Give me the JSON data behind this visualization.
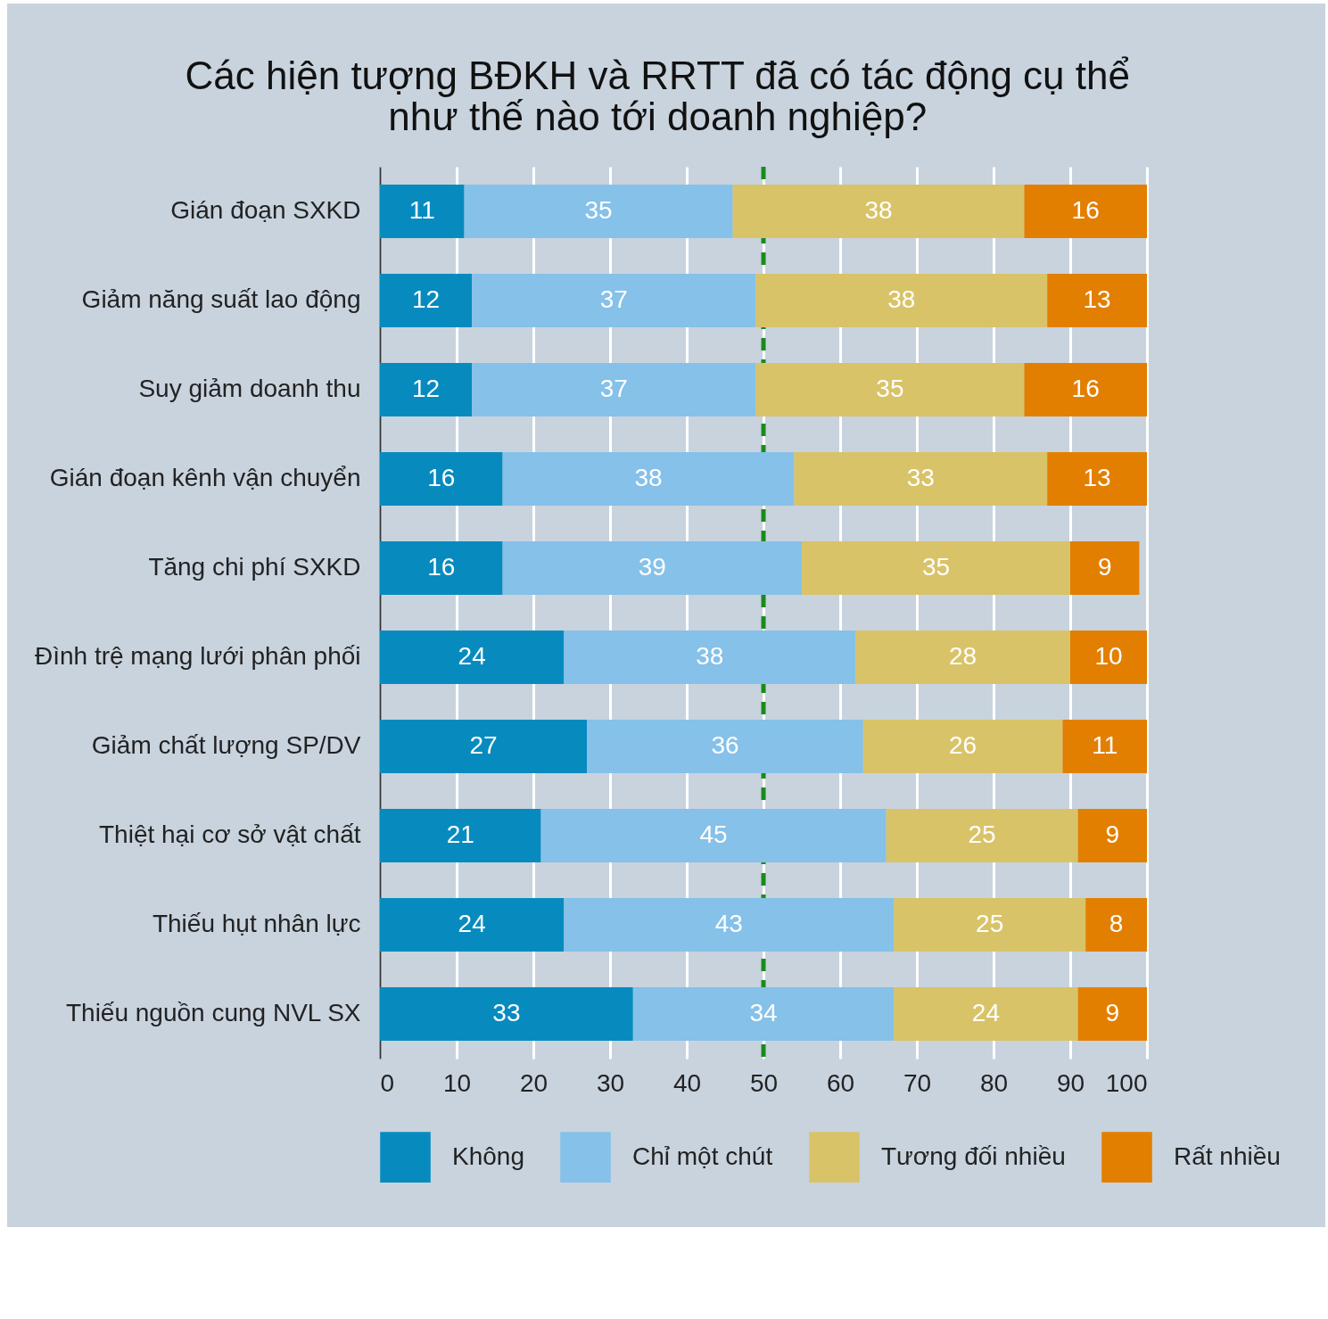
{
  "chart_data": {
    "type": "bar",
    "orientation": "horizontal",
    "stacked": true,
    "title": "Các hiện tượng BĐKH và RRTT đã có tác động cụ thể\nnhư thế nào tới doanh nghiệp?",
    "categories": [
      "Gián đoạn SXKD",
      "Giảm năng suất lao động",
      "Suy giảm doanh thu",
      "Gián đoạn kênh vận chuyển",
      "Tăng chi phí SXKD",
      "Đình trệ mạng lưới phân phối",
      "Giảm chất lượng SP/DV",
      "Thiệt hại cơ sở vật chất",
      "Thiếu hụt nhân lực",
      "Thiếu nguồn cung NVL SX"
    ],
    "series": [
      {
        "name": "Không",
        "color": "#078bbf",
        "values": [
          11,
          12,
          12,
          16,
          16,
          24,
          27,
          21,
          24,
          33
        ]
      },
      {
        "name": "Chỉ một chút",
        "color": "#85c1e9",
        "values": [
          35,
          37,
          37,
          38,
          39,
          38,
          36,
          45,
          43,
          34
        ]
      },
      {
        "name": "Tương đối nhiều",
        "color": "#d9c368",
        "values": [
          38,
          38,
          35,
          33,
          35,
          28,
          26,
          25,
          25,
          24
        ]
      },
      {
        "name": "Rất nhiều",
        "color": "#e37f00",
        "values": [
          16,
          13,
          16,
          13,
          9,
          10,
          11,
          9,
          8,
          9
        ]
      }
    ],
    "xlim": [
      0,
      100
    ],
    "xticks": [
      0,
      10,
      20,
      30,
      40,
      50,
      60,
      70,
      80,
      90,
      100
    ],
    "ref_lines": [
      {
        "axis": "x",
        "value": 50,
        "color": "#1a8a1a",
        "line_style": "dashed"
      }
    ],
    "data_labels": true,
    "grid": "x",
    "legend": "bottom"
  }
}
